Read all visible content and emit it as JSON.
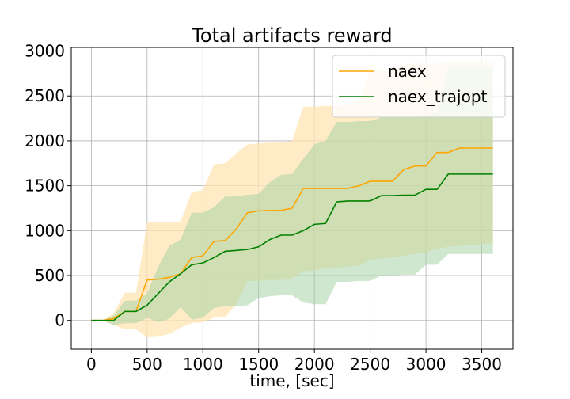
{
  "chart_data": {
    "type": "line",
    "title": "Total artifacts reward",
    "xlabel": "time, [sec]",
    "ylabel": "",
    "xlim": [
      -180,
      3780
    ],
    "ylim": [
      -320,
      3040
    ],
    "xticks": [
      0,
      500,
      1000,
      1500,
      2000,
      2500,
      3000,
      3500
    ],
    "yticks": [
      0,
      500,
      1000,
      1500,
      2000,
      2500,
      3000
    ],
    "grid": true,
    "legend_position": "top-right",
    "x": [
      0,
      100,
      200,
      300,
      400,
      500,
      600,
      700,
      800,
      900,
      1000,
      1100,
      1200,
      1300,
      1400,
      1500,
      1600,
      1700,
      1800,
      1900,
      2000,
      2100,
      2200,
      2300,
      2400,
      2500,
      2600,
      2700,
      2800,
      2900,
      3000,
      3100,
      3200,
      3300,
      3400,
      3500,
      3600
    ],
    "series": [
      {
        "name": "naex",
        "color": "#ffa500",
        "values": [
          0,
          0,
          20,
          100,
          100,
          450,
          460,
          480,
          520,
          700,
          720,
          880,
          890,
          1020,
          1200,
          1220,
          1225,
          1225,
          1250,
          1470,
          1470,
          1470,
          1470,
          1470,
          1500,
          1550,
          1550,
          1550,
          1680,
          1720,
          1720,
          1870,
          1870,
          1920,
          1920,
          1920,
          1920
        ],
        "band_upper": [
          0,
          0,
          80,
          310,
          310,
          1090,
          1095,
          1095,
          1100,
          1430,
          1450,
          1740,
          1750,
          1860,
          1960,
          1970,
          1980,
          1980,
          2000,
          2380,
          2380,
          2390,
          2390,
          2400,
          2450,
          2780,
          2780,
          2800,
          2850,
          2860,
          2870,
          2870,
          2880,
          2880,
          2880,
          2880,
          2880
        ],
        "band_lower": [
          0,
          0,
          -50,
          -100,
          -100,
          -190,
          -180,
          -150,
          -80,
          -30,
          -20,
          30,
          40,
          180,
          440,
          440,
          450,
          450,
          470,
          550,
          560,
          580,
          590,
          600,
          610,
          680,
          690,
          700,
          720,
          740,
          760,
          800,
          820,
          830,
          840,
          850,
          860
        ],
        "fill_color": "#ffe6b3"
      },
      {
        "name": "naex_trajopt",
        "color": "#008000",
        "values": [
          0,
          0,
          0,
          100,
          100,
          170,
          300,
          430,
          520,
          620,
          640,
          700,
          770,
          780,
          790,
          820,
          900,
          950,
          950,
          1000,
          1070,
          1080,
          1320,
          1330,
          1330,
          1330,
          1390,
          1390,
          1395,
          1395,
          1460,
          1460,
          1630,
          1630,
          1630,
          1630,
          1630
        ],
        "band_upper": [
          0,
          0,
          50,
          220,
          220,
          300,
          600,
          830,
          900,
          1200,
          1200,
          1260,
          1380,
          1380,
          1400,
          1410,
          1540,
          1620,
          1630,
          1800,
          1960,
          2000,
          2210,
          2210,
          2220,
          2220,
          2260,
          2260,
          2260,
          2270,
          2290,
          2300,
          2820,
          2820,
          2820,
          2820,
          2820
        ],
        "band_lower": [
          0,
          0,
          -50,
          -30,
          -30,
          30,
          -20,
          20,
          150,
          10,
          30,
          140,
          160,
          160,
          170,
          250,
          270,
          280,
          280,
          200,
          180,
          180,
          430,
          430,
          440,
          440,
          500,
          500,
          510,
          510,
          620,
          620,
          740,
          740,
          740,
          740,
          740
        ],
        "fill_color": "#9fcf9f"
      }
    ]
  }
}
